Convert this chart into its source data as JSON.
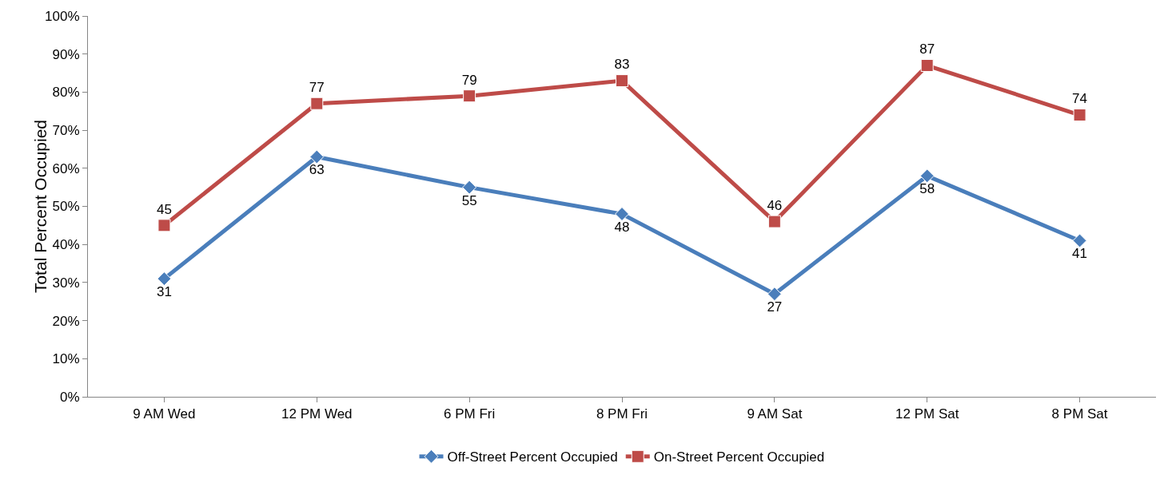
{
  "chart_data": {
    "type": "line",
    "ylabel": "Total Percent Occupied",
    "categories": [
      "9 AM Wed",
      "12 PM Wed",
      "6 PM Fri",
      "8 PM Fri",
      "9 AM Sat",
      "12 PM Sat",
      "8 PM Sat"
    ],
    "series": [
      {
        "name": "Off-Street Percent Occupied",
        "color": "#4a7ebb",
        "marker": "diamond",
        "values": [
          31,
          63,
          55,
          48,
          27,
          58,
          41
        ]
      },
      {
        "name": "On-Street Percent Occupied",
        "color": "#be4b48",
        "marker": "square",
        "values": [
          45,
          77,
          79,
          83,
          46,
          87,
          74
        ]
      }
    ],
    "ylim": [
      0,
      100
    ],
    "yticks": [
      {
        "value": 0,
        "label": "0%"
      },
      {
        "value": 10,
        "label": "10%"
      },
      {
        "value": 20,
        "label": "20%"
      },
      {
        "value": 30,
        "label": "30%"
      },
      {
        "value": 40,
        "label": "40%"
      },
      {
        "value": 50,
        "label": "50%"
      },
      {
        "value": 60,
        "label": "60%"
      },
      {
        "value": 70,
        "label": "70%"
      },
      {
        "value": 80,
        "label": "80%"
      },
      {
        "value": 90,
        "label": "90%"
      },
      {
        "value": 100,
        "label": "100%"
      }
    ],
    "grid": false,
    "legend": "bottom",
    "data_labels": true,
    "line_style": "solid"
  }
}
